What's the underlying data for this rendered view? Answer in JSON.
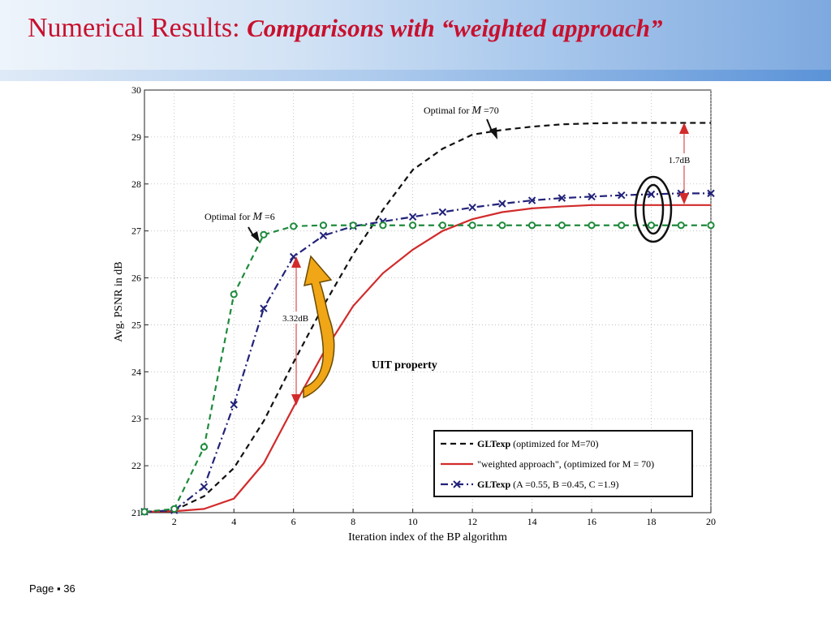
{
  "title": {
    "main": "Numerical Results:",
    "sub": "Comparisons with “weighted approach”"
  },
  "footer": {
    "page_label": "Page",
    "bullet": "▪",
    "page_number": "36"
  },
  "chart_data": {
    "type": "line",
    "xlabel": "Iteration index of the BP algorithm",
    "ylabel": "Avg. PSNR in dB",
    "xlim": [
      1,
      20
    ],
    "ylim": [
      21,
      30
    ],
    "xticks": [
      2,
      4,
      6,
      8,
      10,
      12,
      14,
      16,
      18,
      20
    ],
    "yticks": [
      21,
      22,
      23,
      24,
      25,
      26,
      27,
      28,
      29,
      30
    ],
    "grid": true,
    "legend_placement": "bottom-right",
    "x": [
      1,
      2,
      3,
      4,
      5,
      6,
      7,
      8,
      9,
      10,
      11,
      12,
      13,
      14,
      15,
      16,
      17,
      18,
      19,
      20
    ],
    "series": [
      {
        "legend_bold": "GLTexp",
        "legend_rest": "(optimized for M=70)",
        "color": "#111111",
        "style": "dashed",
        "marker": "none",
        "values": [
          21.02,
          21.05,
          21.35,
          21.95,
          22.95,
          24.2,
          25.4,
          26.5,
          27.45,
          28.3,
          28.75,
          29.05,
          29.15,
          29.22,
          29.27,
          29.29,
          29.3,
          29.3,
          29.3,
          29.3
        ]
      },
      {
        "legend_bold": "",
        "legend_rest": "\"weighted approach\", (optimized for M = 70)",
        "color": "#d22b2b",
        "style": "solid",
        "marker": "none",
        "values": [
          21.02,
          21.03,
          21.08,
          21.3,
          22.05,
          23.25,
          24.4,
          25.4,
          26.1,
          26.6,
          27.0,
          27.25,
          27.4,
          27.48,
          27.52,
          27.55,
          27.55,
          27.55,
          27.55,
          27.55
        ]
      },
      {
        "legend_bold": "GLTexp",
        "legend_rest": "(A =0.55, B =0.45, C =1.9)",
        "color": "#22227a",
        "style": "dashdot",
        "marker": "x",
        "values": [
          21.02,
          21.05,
          21.55,
          23.3,
          25.35,
          26.45,
          26.9,
          27.1,
          27.2,
          27.3,
          27.4,
          27.5,
          27.58,
          27.65,
          27.7,
          27.73,
          27.76,
          27.78,
          27.8,
          27.8
        ]
      },
      {
        "legend_bold": "",
        "legend_rest": "",
        "color": "#1e8a3c",
        "style": "dashed",
        "marker": "o",
        "values": [
          21.02,
          21.08,
          22.4,
          25.65,
          26.92,
          27.1,
          27.12,
          27.12,
          27.12,
          27.12,
          27.12,
          27.12,
          27.12,
          27.12,
          27.12,
          27.12,
          27.12,
          27.12,
          27.12,
          27.12
        ]
      }
    ],
    "annotations": {
      "optimal_m70_prefix": "Optimal for ",
      "optimal_m70_var": "M",
      "optimal_m70_suffix": " =70",
      "optimal_m6_prefix": "Optimal for ",
      "optimal_m6_var": "M",
      "optimal_m6_suffix": " =6",
      "gap_large": "1.7dB",
      "gap_small": "3.32dB",
      "uit": "UIT property"
    }
  }
}
